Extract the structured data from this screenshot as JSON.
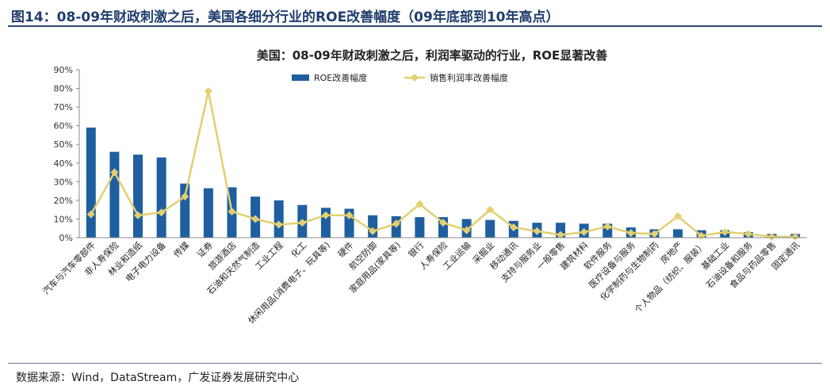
{
  "figure_title": "图14：08-09年财政刺激之后，美国各细分行业的ROE改善幅度（09年底部到10年高点）",
  "source": "数据来源：Wind，DataStream，广发证券发展研究中心",
  "colors": {
    "bar": "#1f5fa0",
    "line": "#e3cf6f",
    "rule": "#2b4a7d"
  },
  "chart_data": {
    "type": "bar",
    "title": "美国：08-09年财政刺激之后，利润率驱动的行业，ROE显著改善",
    "xlabel": "",
    "ylabel": "",
    "ylim": [
      0,
      90
    ],
    "yticks": [
      "0%",
      "10%",
      "20%",
      "30%",
      "40%",
      "50%",
      "60%",
      "70%",
      "80%",
      "90%"
    ],
    "grid": false,
    "legend": "top-left",
    "categories": [
      "汽车与汽车零部件",
      "非人寿保险",
      "林业和造纸",
      "电子电力设备",
      "传媒",
      "证券",
      "旅游酒店",
      "石油和天然气制造",
      "工业工程",
      "化工",
      "休闲用品(消费电子、玩具等)",
      "硬件",
      "航空防御",
      "家庭用品(家具等)",
      "银行",
      "人寿保险",
      "工业运输",
      "采掘业",
      "移动通讯",
      "支持与服务业",
      "一般零售",
      "建筑材料",
      "软件服务",
      "医疗设备与服务",
      "化学制药与生物制药",
      "房地产",
      "个人物品（纺织、服装）",
      "基础工业",
      "石油设备和服务",
      "食品与药品零售",
      "固定通讯"
    ],
    "series": [
      {
        "name": "ROE改善幅度",
        "type": "bar",
        "values": [
          59,
          46,
          44.5,
          43,
          29,
          26.5,
          27,
          22,
          20,
          17.5,
          16,
          15.5,
          12,
          11.5,
          11,
          11,
          10,
          9.5,
          9,
          8,
          8,
          7.5,
          7.5,
          5.5,
          4.5,
          4.5,
          4,
          4,
          3,
          2,
          2
        ]
      },
      {
        "name": "销售利润率改善幅度",
        "type": "line",
        "values": [
          12.5,
          35,
          12,
          13.5,
          22,
          78.5,
          14,
          10,
          7,
          8,
          12,
          12,
          3.5,
          7.5,
          18,
          8,
          4,
          15,
          5.5,
          3.5,
          1.5,
          3,
          6,
          2.5,
          2,
          11.5,
          1,
          3,
          2,
          0.5,
          0.5
        ]
      }
    ]
  }
}
